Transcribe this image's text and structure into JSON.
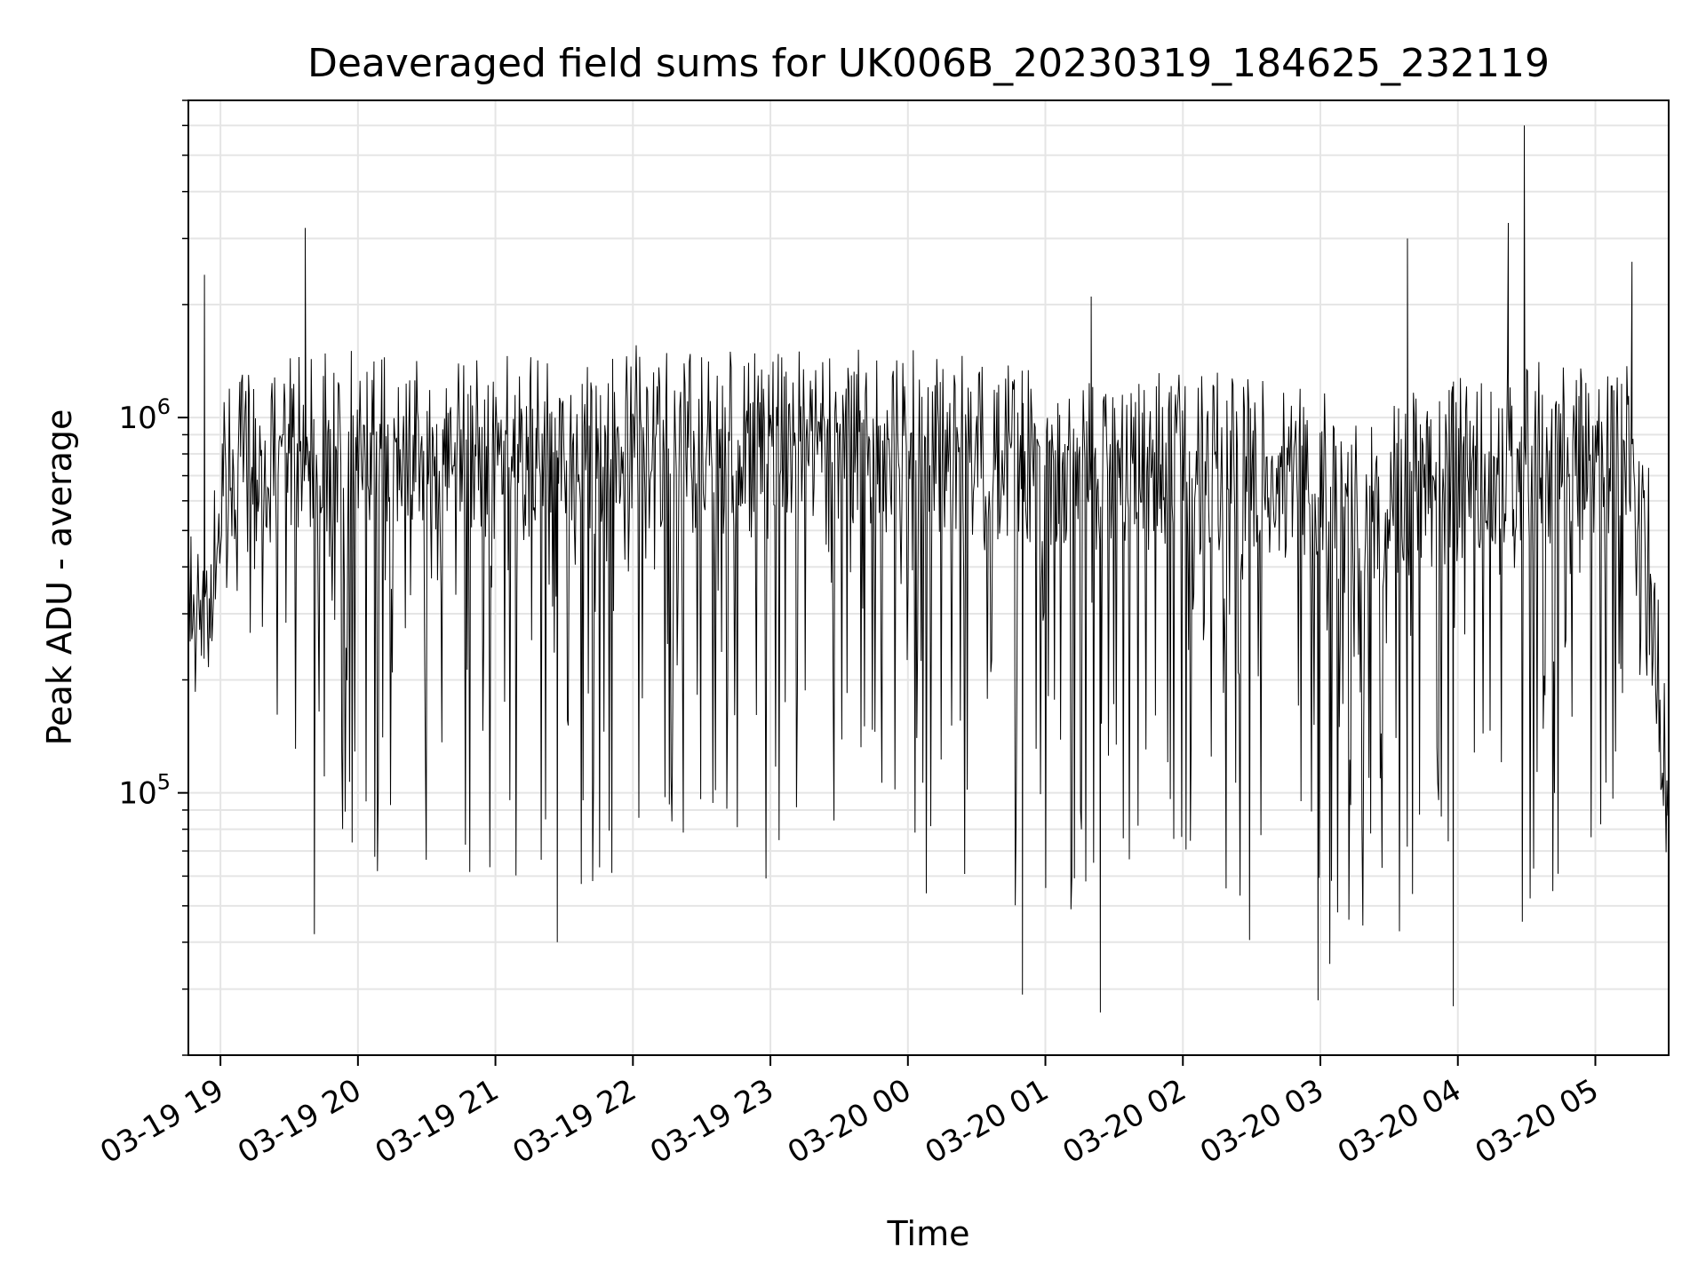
{
  "chart_data": {
    "type": "line",
    "title": "Deaveraged field sums for UK006B_20230319_184625_232119",
    "xlabel": "Time",
    "ylabel": "Peak ADU - average",
    "y_scale": "log",
    "ylim": [
      20000,
      7000000
    ],
    "xlim": [
      "03-19 18:46",
      "03-20 05:32"
    ],
    "grid": true,
    "line_color": "#000000",
    "grid_color": "#e5e5e5",
    "x_ticks": [
      "03-19 19",
      "03-19 20",
      "03-19 21",
      "03-19 22",
      "03-19 23",
      "03-20 00",
      "03-20 01",
      "03-20 02",
      "03-20 03",
      "03-20 04",
      "03-20 05"
    ],
    "y_ticks": [
      {
        "base": "10",
        "exp": "5",
        "value": 100000
      },
      {
        "base": "10",
        "exp": "6",
        "value": 1000000
      }
    ],
    "envelope": {
      "x": [
        "03-19 18:46",
        "03-19 18:55",
        "03-19 19:00",
        "03-19 19:15",
        "03-19 19:30",
        "03-19 19:45",
        "03-19 20:00",
        "03-19 20:30",
        "03-19 21:00",
        "03-19 21:30",
        "03-19 22:00",
        "03-19 22:30",
        "03-19 23:00",
        "03-19 23:30",
        "03-20 00:00",
        "03-20 00:30",
        "03-20 01:00",
        "03-20 01:30",
        "03-20 02:00",
        "03-20 02:30",
        "03-20 03:00",
        "03-20 03:30",
        "03-20 04:00",
        "03-20 04:30",
        "03-20 05:00",
        "03-20 05:20",
        "03-20 05:32"
      ],
      "upper": [
        550000,
        600000,
        1200000,
        1400000,
        1500000,
        1550000,
        1550000,
        1550000,
        1500000,
        1450000,
        1600000,
        1550000,
        1500000,
        1550000,
        1550000,
        1500000,
        1400000,
        1350000,
        1300000,
        1350000,
        1200000,
        1100000,
        1300000,
        1450000,
        1350000,
        1400000,
        150000
      ],
      "lower": [
        350000,
        330000,
        300000,
        250000,
        120000,
        85000,
        60000,
        60000,
        60000,
        55000,
        55000,
        55000,
        55000,
        55000,
        55000,
        50000,
        45000,
        45000,
        42000,
        40000,
        35000,
        35000,
        50000,
        45000,
        70000,
        150000,
        85000
      ]
    },
    "spikes": [
      {
        "x": "03-19 18:53",
        "y": 2400000
      },
      {
        "x": "03-19 19:37",
        "y": 3200000
      },
      {
        "x": "03-20 01:20",
        "y": 2100000
      },
      {
        "x": "03-20 03:38",
        "y": 3000000
      },
      {
        "x": "03-20 04:22",
        "y": 3300000
      },
      {
        "x": "03-20 04:29",
        "y": 6000000
      },
      {
        "x": "03-20 05:16",
        "y": 2600000
      }
    ],
    "dips": [
      {
        "x": "03-19 19:41",
        "y": 42000
      },
      {
        "x": "03-19 21:27",
        "y": 40000
      },
      {
        "x": "03-20 00:50",
        "y": 29000
      },
      {
        "x": "03-20 01:24",
        "y": 26000
      },
      {
        "x": "03-20 02:59",
        "y": 28000
      },
      {
        "x": "03-20 03:58",
        "y": 27000
      }
    ]
  }
}
